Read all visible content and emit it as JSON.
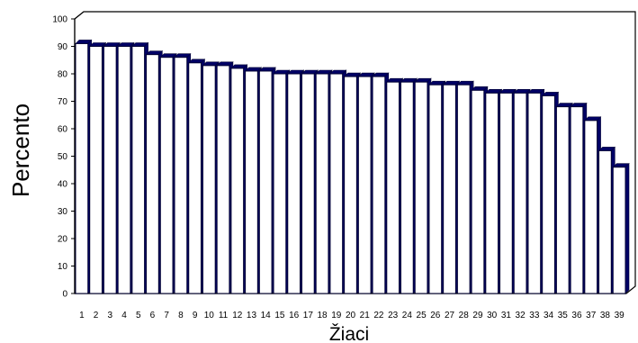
{
  "chart_data": {
    "type": "bar",
    "title": "",
    "xlabel": "Žiaci",
    "ylabel": "Percento",
    "ylim": [
      0,
      100
    ],
    "yticks": [
      0,
      10,
      20,
      30,
      40,
      50,
      60,
      70,
      80,
      90,
      100
    ],
    "grid": false,
    "legend": "none",
    "categories": [
      "1",
      "2",
      "3",
      "4",
      "5",
      "6",
      "7",
      "8",
      "9",
      "10",
      "11",
      "12",
      "13",
      "14",
      "15",
      "16",
      "17",
      "18",
      "19",
      "20",
      "21",
      "22",
      "23",
      "24",
      "25",
      "26",
      "27",
      "28",
      "29",
      "30",
      "31",
      "32",
      "33",
      "34",
      "35",
      "36",
      "37",
      "38",
      "39"
    ],
    "values": [
      91,
      90,
      90,
      90,
      90,
      87,
      86,
      86,
      84,
      83,
      83,
      82,
      81,
      81,
      80,
      80,
      80,
      80,
      80,
      79,
      79,
      79,
      77,
      77,
      77,
      76,
      76,
      76,
      74,
      73,
      73,
      73,
      73,
      72,
      68,
      68,
      63,
      52,
      46
    ],
    "colors": {
      "bar_face": "#ffffff",
      "bar_side": "#000066",
      "bar_outline": "#000033",
      "axis": "#000000"
    }
  }
}
